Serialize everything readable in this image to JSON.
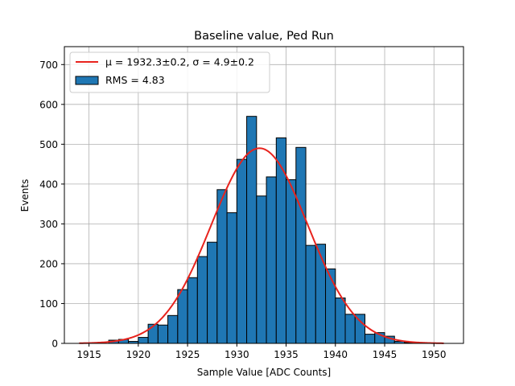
{
  "chart_data": {
    "type": "bar",
    "title": "Baseline value, Ped Run",
    "xlabel": "Sample Value [ADC Counts]",
    "ylabel": "Events",
    "xlim": [
      1912.5,
      1953
    ],
    "ylim": [
      0,
      745
    ],
    "xticks": [
      1915,
      1920,
      1925,
      1930,
      1935,
      1940,
      1945,
      1950
    ],
    "yticks": [
      0,
      100,
      200,
      300,
      400,
      500,
      600,
      700
    ],
    "grid": true,
    "legend_position": "top-left",
    "bin_width": 1,
    "series": [
      {
        "name": "RMS = 4.83",
        "kind": "histogram",
        "color": "#1f77b4",
        "edgecolor": "#000000",
        "bin_lefts": [
          1914,
          1915,
          1916,
          1917,
          1918,
          1919,
          1920,
          1921,
          1922,
          1923,
          1924,
          1925,
          1926,
          1927,
          1928,
          1929,
          1930,
          1931,
          1932,
          1933,
          1934,
          1935,
          1936,
          1937,
          1938,
          1939,
          1940,
          1941,
          1942,
          1943,
          1944,
          1945,
          1946,
          1947,
          1948,
          1949,
          1950
        ],
        "values": [
          0,
          0,
          0,
          8,
          10,
          5,
          15,
          48,
          46,
          70,
          135,
          165,
          218,
          254,
          386,
          328,
          462,
          570,
          370,
          418,
          516,
          411,
          492,
          246,
          249,
          187,
          114,
          73,
          73,
          23,
          27,
          18,
          5,
          2,
          0,
          0,
          0
        ]
      },
      {
        "name": "μ = 1932.3±0.2, σ = 4.9±0.2",
        "kind": "gaussian-fit",
        "color": "#e8231d",
        "mu": 1932.3,
        "sigma": 4.9,
        "amplitude": 490,
        "x_range": [
          1914,
          1951
        ]
      }
    ]
  }
}
